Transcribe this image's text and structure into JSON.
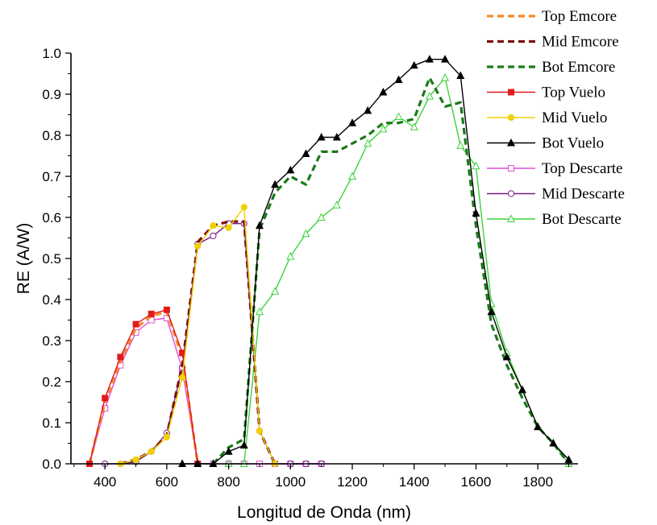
{
  "chart_data": {
    "type": "line",
    "xlabel": "Longitud de Onda (nm)",
    "ylabel": "RE (A/W)",
    "xlim": [
      290,
      1930
    ],
    "ylim": [
      0,
      1.0
    ],
    "xticks": [
      400,
      600,
      800,
      1000,
      1200,
      1400,
      1600,
      1800
    ],
    "yticks": [
      0.0,
      0.1,
      0.2,
      0.3,
      0.4,
      0.5,
      0.6,
      0.7,
      0.8,
      0.9,
      1.0
    ],
    "grid": false,
    "legend_position": "top-right",
    "series": [
      {
        "name": "Top Emcore",
        "color": "#f28c28",
        "style": "dashed",
        "marker": "none",
        "x": [
          350,
          400,
          450,
          500,
          550,
          600,
          650,
          700
        ],
        "y": [
          0.0,
          0.15,
          0.25,
          0.33,
          0.36,
          0.37,
          0.26,
          0.0
        ]
      },
      {
        "name": "Mid Emcore",
        "color": "#7a1010",
        "style": "dashed",
        "marker": "none",
        "x": [
          450,
          500,
          550,
          600,
          650,
          700,
          750,
          800,
          850,
          900,
          950
        ],
        "y": [
          0.0,
          0.01,
          0.03,
          0.07,
          0.24,
          0.54,
          0.58,
          0.59,
          0.59,
          0.08,
          0.0
        ]
      },
      {
        "name": "Bot Emcore",
        "color": "#1a7a1a",
        "style": "dashed",
        "marker": "none",
        "x": [
          750,
          800,
          850,
          900,
          950,
          1000,
          1050,
          1100,
          1150,
          1200,
          1250,
          1300,
          1350,
          1400,
          1450,
          1500,
          1550,
          1600,
          1650,
          1700,
          1750,
          1800,
          1850,
          1900
        ],
        "y": [
          0.0,
          0.04,
          0.06,
          0.57,
          0.66,
          0.7,
          0.68,
          0.76,
          0.76,
          0.78,
          0.8,
          0.83,
          0.83,
          0.84,
          0.94,
          0.87,
          0.88,
          0.58,
          0.34,
          0.24,
          0.16,
          0.09,
          0.05,
          0.0
        ]
      },
      {
        "name": "Top Vuelo",
        "color": "#e11b1b",
        "style": "solid",
        "marker": "square-filled",
        "x": [
          350,
          400,
          450,
          500,
          550,
          600,
          650,
          700
        ],
        "y": [
          0.0,
          0.16,
          0.26,
          0.34,
          0.365,
          0.375,
          0.27,
          0.0
        ]
      },
      {
        "name": "Mid Vuelo",
        "color": "#f0d000",
        "style": "solid",
        "marker": "circle-filled",
        "x": [
          450,
          500,
          550,
          600,
          650,
          700,
          750,
          800,
          850,
          900,
          950
        ],
        "y": [
          0.0,
          0.01,
          0.03,
          0.065,
          0.21,
          0.53,
          0.58,
          0.575,
          0.625,
          0.08,
          0.0
        ]
      },
      {
        "name": "Bot Vuelo",
        "color": "#000000",
        "style": "solid",
        "marker": "triangle-filled",
        "x": [
          650,
          700,
          750,
          800,
          850,
          900,
          950,
          1000,
          1050,
          1100,
          1150,
          1200,
          1250,
          1300,
          1350,
          1400,
          1450,
          1500,
          1550,
          1600,
          1650,
          1700,
          1750,
          1800,
          1850,
          1900
        ],
        "y": [
          0.0,
          0.0,
          0.0,
          0.03,
          0.045,
          0.58,
          0.68,
          0.715,
          0.755,
          0.795,
          0.795,
          0.83,
          0.86,
          0.905,
          0.935,
          0.97,
          0.985,
          0.985,
          0.945,
          0.61,
          0.37,
          0.26,
          0.18,
          0.09,
          0.05,
          0.01
        ]
      },
      {
        "name": "Top Descarte",
        "color": "#e050d8",
        "style": "solid",
        "marker": "square-open",
        "x": [
          350,
          400,
          450,
          500,
          550,
          600,
          650,
          700,
          750,
          800,
          850,
          900,
          950,
          1000,
          1050,
          1100
        ],
        "y": [
          0.0,
          0.135,
          0.24,
          0.32,
          0.35,
          0.355,
          0.23,
          0.0,
          0.0,
          0.0,
          0.0,
          0.0,
          0.0,
          0.0,
          0.0,
          0.0
        ]
      },
      {
        "name": "Mid Descarte",
        "color": "#7a1a8c",
        "style": "solid",
        "marker": "circle-open",
        "x": [
          400,
          450,
          500,
          550,
          600,
          650,
          700,
          750,
          800,
          850,
          900,
          950,
          1000,
          1050,
          1100
        ],
        "y": [
          0.0,
          0.0,
          0.005,
          0.03,
          0.075,
          0.235,
          0.535,
          0.555,
          0.585,
          0.585,
          0.08,
          0.0,
          0.0,
          0.0,
          0.0
        ]
      },
      {
        "name": "Bot Descarte",
        "color": "#3cd23c",
        "style": "solid",
        "marker": "triangle-open",
        "x": [
          800,
          850,
          900,
          950,
          1000,
          1050,
          1100,
          1150,
          1200,
          1250,
          1300,
          1350,
          1400,
          1450,
          1500,
          1550,
          1600,
          1650,
          1700,
          1750,
          1800,
          1850,
          1900
        ],
        "y": [
          0.0,
          0.0,
          0.37,
          0.42,
          0.505,
          0.56,
          0.6,
          0.63,
          0.7,
          0.78,
          0.815,
          0.845,
          0.82,
          0.895,
          0.94,
          0.775,
          0.725,
          0.39,
          0.27,
          0.18,
          0.09,
          0.05,
          0.0
        ]
      }
    ]
  }
}
